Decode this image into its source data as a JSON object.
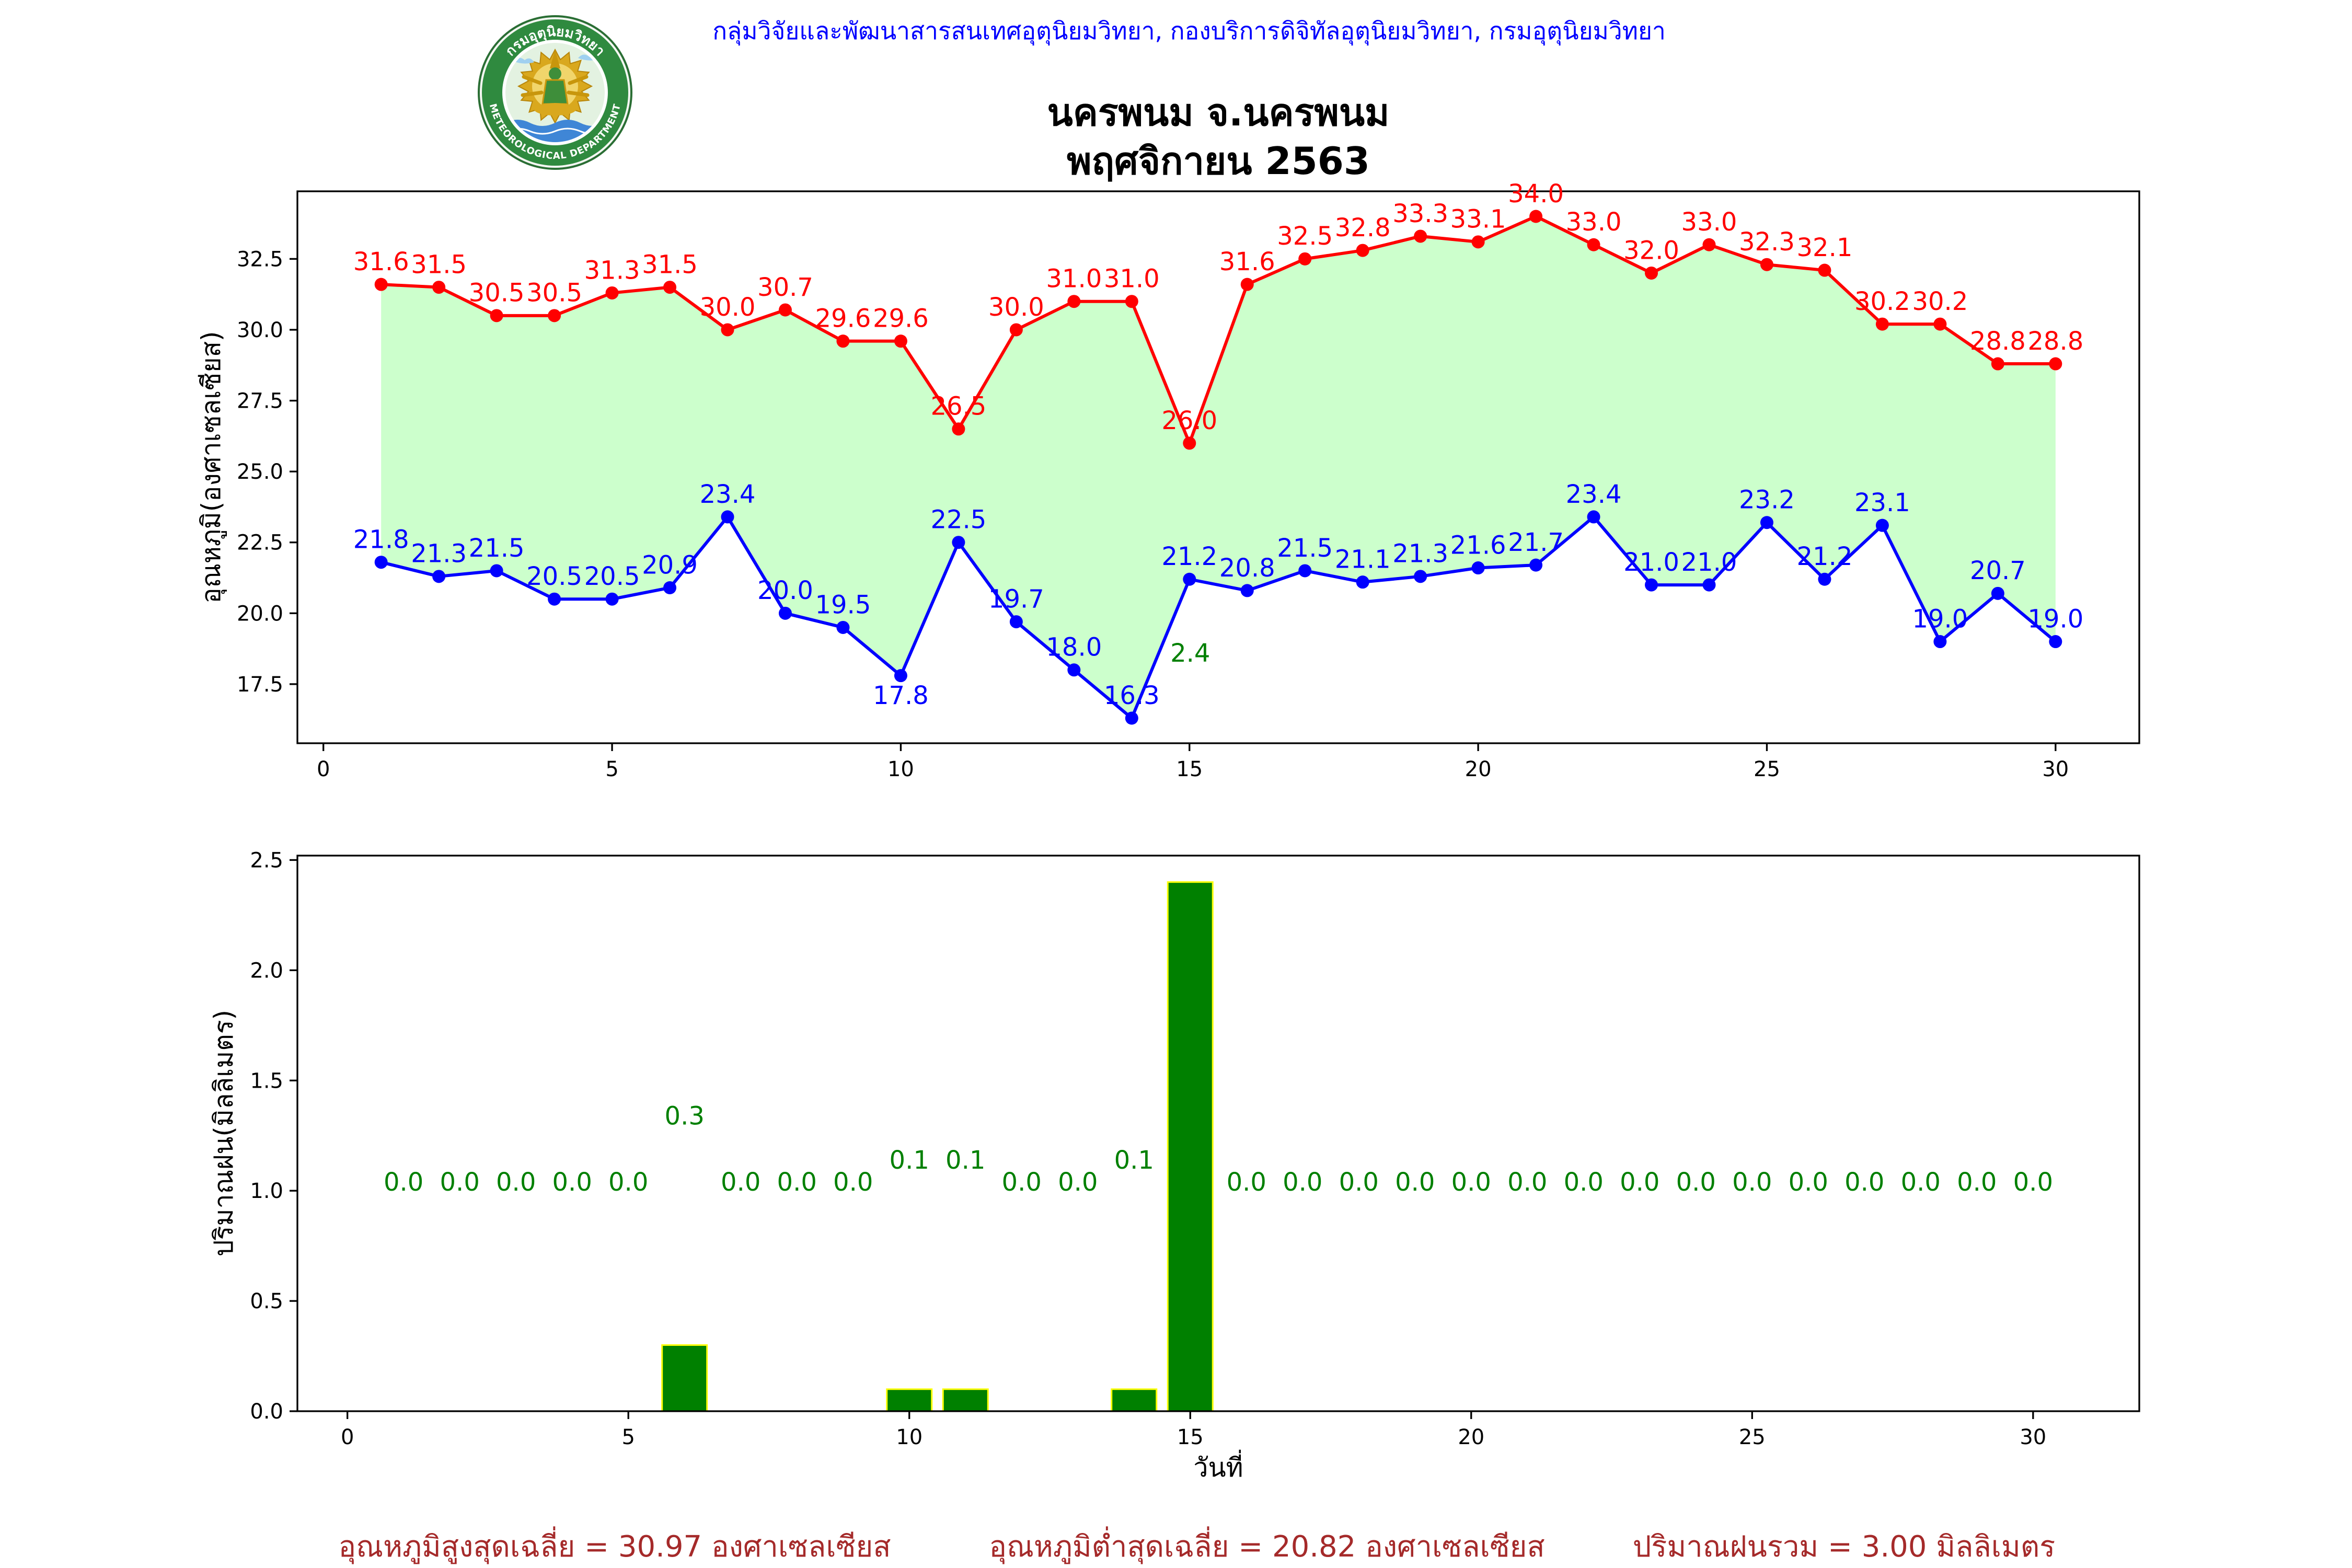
{
  "header": {
    "organization": "กลุ่มวิจัยและพัฒนาสารสนเทศอุตุนิยมวิทยา, กองบริการดิจิทัลอุตุนิยมวิทยา, กรมอุตุนิยมวิทยา"
  },
  "logo": {
    "icon": "meteorological-department-seal-icon",
    "text_th": "กรมอุตุนิยมวิทยา",
    "text_en": "METEOROLOGICAL DEPARTMENT"
  },
  "chart_data": [
    {
      "type": "line",
      "title": "นครพนม จ.นครพนม",
      "subtitle": "พฤศจิกายน 2563",
      "ylabel": "อุณหภูมิ(องศาเซลเซียส)",
      "x": [
        1,
        2,
        3,
        4,
        5,
        6,
        7,
        8,
        9,
        10,
        11,
        12,
        13,
        14,
        15,
        16,
        17,
        18,
        19,
        20,
        21,
        22,
        23,
        24,
        25,
        26,
        27,
        28,
        29,
        30
      ],
      "series": [
        {
          "values": [
            31.6,
            31.5,
            30.5,
            30.5,
            31.3,
            31.5,
            30.0,
            30.7,
            29.6,
            29.6,
            26.5,
            30.0,
            31.0,
            31.0,
            26.0,
            31.6,
            32.5,
            32.8,
            33.3,
            33.1,
            34.0,
            33.0,
            32.0,
            33.0,
            32.3,
            32.1,
            30.2,
            30.2,
            28.8,
            28.8
          ],
          "color": "#ff0000"
        },
        {
          "values": [
            21.8,
            21.3,
            21.5,
            20.5,
            20.5,
            20.9,
            23.4,
            20.0,
            19.5,
            17.8,
            22.5,
            19.7,
            18.0,
            16.3,
            21.2,
            20.8,
            21.5,
            21.1,
            21.3,
            21.6,
            21.7,
            23.4,
            21.0,
            21.0,
            23.2,
            21.2,
            23.1,
            19.0,
            20.7,
            19.0
          ],
          "color": "#0000ff"
        }
      ],
      "fill_between_color": "#ccffcc",
      "data_labels": true,
      "xlim": [
        -0.45,
        31.45
      ],
      "ylim": [
        15.415,
        34.885
      ],
      "xticks": [
        0,
        5,
        10,
        15,
        20,
        25,
        30
      ],
      "ytick_labels": [
        "17.5",
        "20.0",
        "22.5",
        "25.0",
        "27.5",
        "30.0",
        "32.5"
      ],
      "grid": false
    },
    {
      "type": "bar",
      "xlabel": "วันที่",
      "ylabel": "ปริมาณฝน(มิลลิเมตร)",
      "x": [
        1,
        2,
        3,
        4,
        5,
        6,
        7,
        8,
        9,
        10,
        11,
        12,
        13,
        14,
        15,
        16,
        17,
        18,
        19,
        20,
        21,
        22,
        23,
        24,
        25,
        26,
        27,
        28,
        29,
        30
      ],
      "values": [
        0.0,
        0.0,
        0.0,
        0.0,
        0.0,
        0.3,
        0.0,
        0.0,
        0.0,
        0.1,
        0.1,
        0.0,
        0.0,
        0.1,
        2.4,
        0.0,
        0.0,
        0.0,
        0.0,
        0.0,
        0.0,
        0.0,
        0.0,
        0.0,
        0.0,
        0.0,
        0.0,
        0.0,
        0.0,
        0.0
      ],
      "bar_color": "#008000",
      "edge_color": "#ffff00",
      "label_color": "#008000",
      "data_labels": true,
      "xlim": [
        -0.89,
        31.89
      ],
      "ylim": [
        0,
        2.52
      ],
      "xticks": [
        0,
        5,
        10,
        15,
        20,
        25,
        30
      ],
      "ytick_labels": [
        "0.0",
        "0.5",
        "1.0",
        "1.5",
        "2.0",
        "2.5"
      ],
      "grid": false
    }
  ],
  "summary": {
    "max_temperature_average": "อุณหภูมิสูงสุดเฉลี่ย = 30.97 องศาเซลเซียส",
    "min_temperature_average": "อุณหภูมิต่ำสุดเฉลี่ย = 20.82 องศาเซลเซียส",
    "total_rainfall": "ปริมาณฝนรวม = 3.00 มิลลิเมตร"
  }
}
